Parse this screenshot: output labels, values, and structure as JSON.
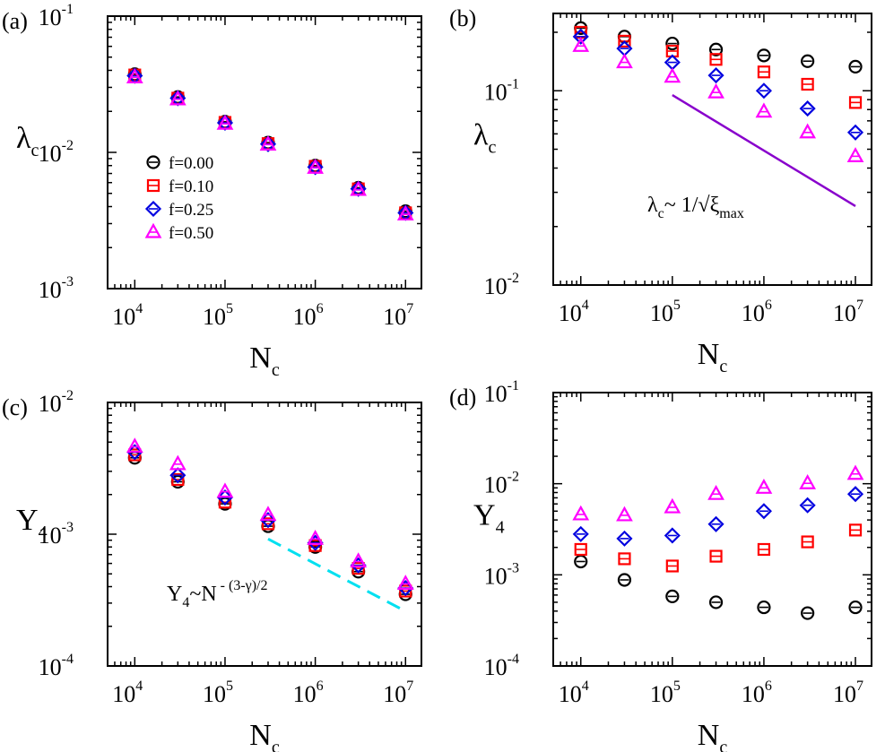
{
  "figure": {
    "colors": {
      "f0": "#000000",
      "f10": "#ff0000",
      "f25": "#0000e0",
      "f50": "#ff00ff",
      "fit_line": "#8800cc",
      "dashed_line": "#00e0f0"
    },
    "markers": {
      "f0": "circle",
      "f10": "square",
      "f25": "diamond",
      "f50": "triangle"
    }
  },
  "chart_data": [
    {
      "id": "a",
      "panel_label": "(a)",
      "type": "scatter",
      "xscale": "log",
      "yscale": "log",
      "xlim": [
        5000,
        15000000
      ],
      "ylim": [
        0.001,
        0.1
      ],
      "xticks": [
        {
          "base": "10",
          "exp": "4"
        },
        {
          "base": "10",
          "exp": "5"
        },
        {
          "base": "10",
          "exp": "6"
        },
        {
          "base": "10",
          "exp": "7"
        }
      ],
      "yticks": [
        {
          "base": "10",
          "exp": "-3"
        },
        {
          "base": "10",
          "exp": "-2"
        },
        {
          "base": "10",
          "exp": "-1"
        }
      ],
      "xlabel": {
        "main": "N",
        "sub": "c"
      },
      "ylabel": {
        "main": "λ",
        "sub": "c"
      },
      "legend": {
        "placement": "center-left",
        "entries": [
          "f=0.00",
          "f=0.10",
          "f=0.25",
          "f=0.50"
        ]
      },
      "x": [
        10000,
        30000,
        100000,
        300000,
        1000000,
        3000000,
        10000000
      ],
      "series": [
        {
          "name": "f=0.00",
          "key": "f0",
          "values": [
            0.0375,
            0.0255,
            0.0168,
            0.0118,
            0.008,
            0.0055,
            0.0037
          ]
        },
        {
          "name": "f=0.10",
          "key": "f10",
          "values": [
            0.037,
            0.025,
            0.0166,
            0.0116,
            0.0079,
            0.0054,
            0.0036
          ]
        },
        {
          "name": "f=0.25",
          "key": "f25",
          "values": [
            0.0365,
            0.025,
            0.0165,
            0.0115,
            0.0078,
            0.0054,
            0.0036
          ]
        },
        {
          "name": "f=0.50",
          "key": "f50",
          "values": [
            0.0355,
            0.0245,
            0.0162,
            0.0114,
            0.0077,
            0.0053,
            0.0035
          ]
        }
      ]
    },
    {
      "id": "b",
      "panel_label": "(b)",
      "type": "scatter",
      "xscale": "log",
      "yscale": "log",
      "xlim": [
        5000,
        15000000
      ],
      "ylim": [
        0.01,
        0.25
      ],
      "xticks": [
        {
          "base": "10",
          "exp": "4"
        },
        {
          "base": "10",
          "exp": "5"
        },
        {
          "base": "10",
          "exp": "6"
        },
        {
          "base": "10",
          "exp": "7"
        }
      ],
      "yticks": [
        {
          "base": "10",
          "exp": "-2"
        },
        {
          "base": "10",
          "exp": "-1"
        }
      ],
      "xlabel": {
        "main": "N",
        "sub": "c"
      },
      "ylabel": {
        "main": "λ",
        "sub": "c"
      },
      "x": [
        10000,
        30000,
        100000,
        300000,
        1000000,
        3000000,
        10000000
      ],
      "series": [
        {
          "name": "f=0.00",
          "key": "f0",
          "values": [
            0.21,
            0.19,
            0.175,
            0.163,
            0.152,
            0.142,
            0.133
          ]
        },
        {
          "name": "f=0.10",
          "key": "f10",
          "values": [
            0.2,
            0.18,
            0.16,
            0.145,
            0.125,
            0.108,
            0.087
          ]
        },
        {
          "name": "f=0.25",
          "key": "f25",
          "values": [
            0.19,
            0.165,
            0.14,
            0.12,
            0.1,
            0.081,
            0.061
          ]
        },
        {
          "name": "f=0.50",
          "key": "f50",
          "values": [
            0.17,
            0.14,
            0.118,
            0.098,
            0.078,
            0.061,
            0.046
          ]
        }
      ],
      "fit_line": {
        "x": [
          100000,
          10000000
        ],
        "y": [
          0.095,
          0.0255
        ]
      },
      "annotation": {
        "main": "λ",
        "sub_c": "c",
        "mid": "~ 1/√ξ",
        "sub_max": "max"
      }
    },
    {
      "id": "c",
      "panel_label": "(c)",
      "type": "scatter",
      "xscale": "log",
      "yscale": "log",
      "xlim": [
        5000,
        15000000
      ],
      "ylim": [
        0.0001,
        0.01
      ],
      "xticks": [
        {
          "base": "10",
          "exp": "4"
        },
        {
          "base": "10",
          "exp": "5"
        },
        {
          "base": "10",
          "exp": "6"
        },
        {
          "base": "10",
          "exp": "7"
        }
      ],
      "yticks": [
        {
          "base": "10",
          "exp": "-4"
        },
        {
          "base": "10",
          "exp": "-3"
        },
        {
          "base": "10",
          "exp": "-2"
        }
      ],
      "xlabel": {
        "main": "N",
        "sub": "c"
      },
      "ylabel": {
        "main": "Y",
        "sub": "4"
      },
      "x": [
        10000,
        30000,
        100000,
        300000,
        1000000,
        3000000,
        10000000
      ],
      "series": [
        {
          "name": "f=0.00",
          "key": "f0",
          "values": [
            0.0038,
            0.0025,
            0.0017,
            0.00115,
            0.0008,
            0.00052,
            0.00035
          ]
        },
        {
          "name": "f=0.10",
          "key": "f10",
          "values": [
            0.004,
            0.0026,
            0.00175,
            0.0012,
            0.00082,
            0.00055,
            0.00037
          ]
        },
        {
          "name": "f=0.25",
          "key": "f25",
          "values": [
            0.0042,
            0.0028,
            0.0019,
            0.00128,
            0.00086,
            0.00058,
            0.00039
          ]
        },
        {
          "name": "f=0.50",
          "key": "f50",
          "values": [
            0.0046,
            0.0034,
            0.0021,
            0.0014,
            0.00092,
            0.00062,
            0.00042
          ]
        }
      ],
      "dashed_line": {
        "x": [
          300000,
          10000000
        ],
        "y": [
          0.00092,
          0.00026
        ]
      },
      "annotation": {
        "main": "Y",
        "sub_4": "4",
        "mid": "~N",
        "sup": "- (3-γ)/2"
      }
    },
    {
      "id": "d",
      "panel_label": "(d)",
      "type": "scatter",
      "xscale": "log",
      "yscale": "log",
      "xlim": [
        5000,
        15000000
      ],
      "ylim": [
        0.0001,
        0.1
      ],
      "xticks": [
        {
          "base": "10",
          "exp": "4"
        },
        {
          "base": "10",
          "exp": "5"
        },
        {
          "base": "10",
          "exp": "6"
        },
        {
          "base": "10",
          "exp": "7"
        }
      ],
      "yticks": [
        {
          "base": "10",
          "exp": "-4"
        },
        {
          "base": "10",
          "exp": "-3"
        },
        {
          "base": "10",
          "exp": "-2"
        },
        {
          "base": "10",
          "exp": "-1"
        }
      ],
      "xlabel": {
        "main": "N",
        "sub": "c"
      },
      "ylabel": {
        "main": "Y",
        "sub": "4"
      },
      "x": [
        10000,
        30000,
        100000,
        300000,
        1000000,
        3000000,
        10000000
      ],
      "series": [
        {
          "name": "f=0.00",
          "key": "f0",
          "values": [
            0.0014,
            0.00088,
            0.00058,
            0.0005,
            0.00044,
            0.00038,
            0.00044
          ]
        },
        {
          "name": "f=0.10",
          "key": "f10",
          "values": [
            0.0019,
            0.0015,
            0.00125,
            0.0016,
            0.0019,
            0.0023,
            0.0031
          ]
        },
        {
          "name": "f=0.25",
          "key": "f25",
          "values": [
            0.0028,
            0.0025,
            0.0027,
            0.0036,
            0.005,
            0.0058,
            0.0077
          ]
        },
        {
          "name": "f=0.50",
          "key": "f50",
          "values": [
            0.0046,
            0.0045,
            0.0055,
            0.0077,
            0.009,
            0.0101,
            0.0128
          ]
        }
      ]
    }
  ]
}
